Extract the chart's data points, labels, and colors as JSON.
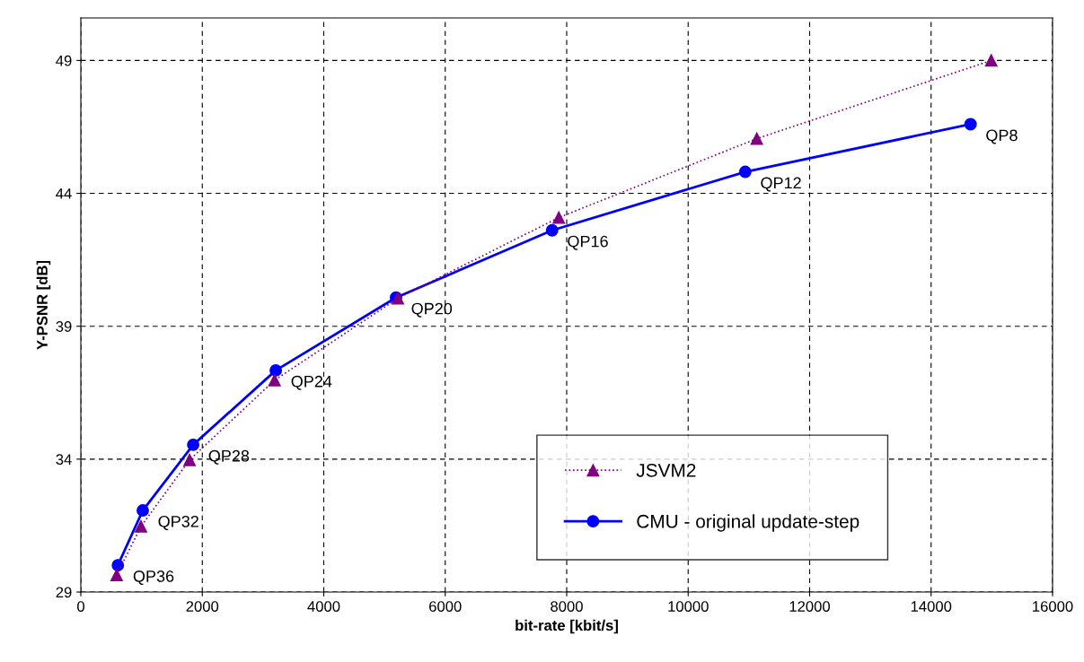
{
  "chart_data": {
    "type": "line",
    "xlabel": "bit-rate [kbit/s]",
    "ylabel": "Y-PSNR [dB]",
    "xlim": [
      0,
      16000
    ],
    "xticks": [
      0,
      2000,
      4000,
      6000,
      8000,
      10000,
      12000,
      14000,
      16000
    ],
    "ylim": [
      29,
      50.6
    ],
    "yticks": [
      29,
      34,
      39,
      44,
      49
    ],
    "grid": true,
    "legend": "bottom right",
    "series": [
      {
        "name": "JSVM2",
        "color": "#800080",
        "marker": "triangle",
        "line_style": "dotted",
        "x": [
          590,
          990,
          1790,
          3190,
          5220,
          7870,
          11130,
          14990
        ],
        "values": [
          29.64,
          31.47,
          33.97,
          36.97,
          40.05,
          43.09,
          46.06,
          49.0
        ]
      },
      {
        "name": "CMU - original update-step",
        "color": "#0000ff",
        "marker": "circle",
        "line_style": "solid",
        "x": [
          610,
          1020,
          1850,
          3210,
          5190,
          7760,
          10940,
          14650
        ],
        "values": [
          30.01,
          32.07,
          34.54,
          37.34,
          40.08,
          42.61,
          44.81,
          46.6
        ]
      }
    ],
    "annotations": [
      {
        "text": "QP36",
        "x": 610,
        "y": 30.01
      },
      {
        "text": "QP32",
        "x": 1020,
        "y": 32.07
      },
      {
        "text": "QP28",
        "x": 1850,
        "y": 34.54
      },
      {
        "text": "QP24",
        "x": 3210,
        "y": 37.34
      },
      {
        "text": "QP20",
        "x": 5190,
        "y": 40.08
      },
      {
        "text": "QP16",
        "x": 7760,
        "y": 42.61
      },
      {
        "text": "QP12",
        "x": 10940,
        "y": 44.81
      },
      {
        "text": "QP8",
        "x": 14650,
        "y": 46.6
      }
    ]
  }
}
